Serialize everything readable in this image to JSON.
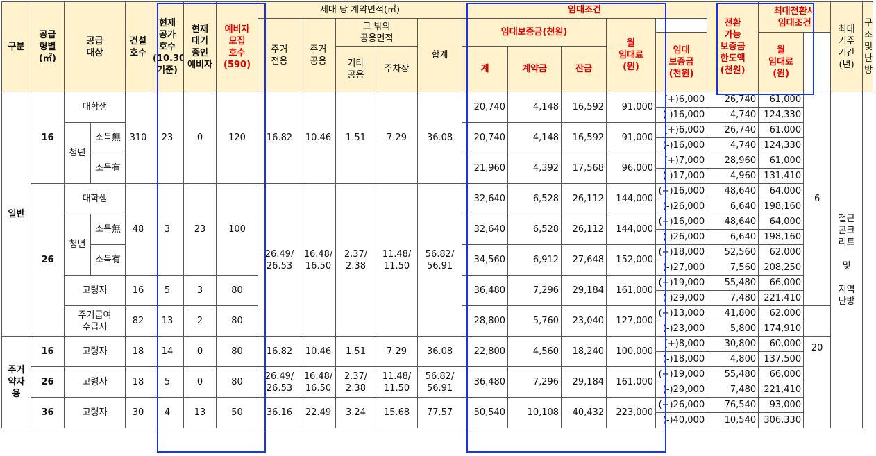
{
  "headers": {
    "category": "구분",
    "supply_type": "공급\n형별\n(㎡)",
    "target": "공급\n대상",
    "built": "건설\n호수",
    "vacant": "현재\n공가\n호수\n(10.30\n기준)",
    "waiting": "현재\n대기\n중인\n예비자",
    "recruit": "예비자\n모집\n호수\n(590)",
    "area_group": "세대 당 계약면적(㎡)",
    "area_private": "주거\n전용",
    "area_common": "주거\n공용",
    "area_other_group": "그 밖의\n공용면적",
    "area_other": "기타\n공용",
    "area_parking": "주차장",
    "area_total": "합계",
    "rent_group": "임대조건",
    "deposit_group": "임대보증금(천원)",
    "deposit_total": "계",
    "deposit_contract": "계약금",
    "deposit_balance": "잔금",
    "monthly": "월\n임대료\n(원)",
    "convertible": "전환\n가능\n보증금\n한도액\n(천원)",
    "max_group": "최대전환시\n임대조건",
    "max_deposit": "임대\n보증금\n(천원)",
    "max_monthly": "월\n임대료\n(원)",
    "max_period": "최대\n거주\n기간\n(년)",
    "structure": "구조\n및\n난방"
  },
  "labels": {
    "general": "일반",
    "housing_support": "주거\n약자\n용",
    "t16": "16",
    "t26": "26",
    "t36": "36",
    "student": "대학생",
    "youth": "청년",
    "no_income": "소득無",
    "has_income": "소득有",
    "elderly": "고령자",
    "benefit": "주거급여\n수급자",
    "period6": "6",
    "period20": "20",
    "structure": "철근\n콘크\n리트\n\n및\n\n지역\n난방"
  },
  "groups": {
    "g16": {
      "built": "310",
      "vacant": "23",
      "waiting": "0",
      "recruit": "120",
      "private": "16.82",
      "common": "10.46",
      "other": "1.51",
      "parking": "7.29",
      "total": "36.08"
    },
    "g26": {
      "built": "48",
      "vacant": "3",
      "waiting": "23",
      "recruit": "100"
    },
    "g26_area": {
      "private": "26.49/\n26.53",
      "common": "16.48/\n16.50",
      "other": "2.37/\n2.38",
      "parking": "11.48/\n11.50",
      "total": "56.82/\n56.91"
    },
    "g26_elderly": {
      "built": "16",
      "vacant": "5",
      "waiting": "3",
      "recruit": "80"
    },
    "g26_benefit": {
      "built": "82",
      "vacant": "13",
      "waiting": "2",
      "recruit": "80"
    },
    "s16": {
      "built": "18",
      "vacant": "14",
      "waiting": "0",
      "recruit": "80",
      "private": "16.82",
      "common": "10.46",
      "other": "1.51",
      "parking": "7.29",
      "total": "36.08"
    },
    "s26": {
      "built": "18",
      "vacant": "5",
      "waiting": "0",
      "recruit": "80",
      "private": "26.49/\n26.53",
      "common": "16.48/\n16.50",
      "other": "2.37/\n2.38",
      "parking": "11.48/\n11.50",
      "total": "56.82/\n56.91"
    },
    "s36": {
      "built": "30",
      "vacant": "4",
      "waiting": "13",
      "recruit": "50",
      "private": "36.16",
      "common": "22.49",
      "other": "3.24",
      "parking": "15.68",
      "total": "77.57"
    }
  },
  "rents": [
    {
      "deposit": "20,740",
      "contract": "4,148",
      "balance": "16,592",
      "monthly": "91,000",
      "conv": [
        "(+)6,000",
        "(-)16,000"
      ],
      "max_dep": [
        "26,740",
        "4,740"
      ],
      "max_mon": [
        "61,000",
        "124,330"
      ]
    },
    {
      "deposit": "20,740",
      "contract": "4,148",
      "balance": "16,592",
      "monthly": "91,000",
      "conv": [
        "(+)6,000",
        "(-)16,000"
      ],
      "max_dep": [
        "26,740",
        "4,740"
      ],
      "max_mon": [
        "61,000",
        "124,330"
      ]
    },
    {
      "deposit": "21,960",
      "contract": "4,392",
      "balance": "17,568",
      "monthly": "96,000",
      "conv": [
        "(+)7,000",
        "(-)17,000"
      ],
      "max_dep": [
        "28,960",
        "4,960"
      ],
      "max_mon": [
        "61,000",
        "131,410"
      ]
    },
    {
      "deposit": "32,640",
      "contract": "6,528",
      "balance": "26,112",
      "monthly": "144,000",
      "conv": [
        "(+)16,000",
        "(-)26,000"
      ],
      "max_dep": [
        "48,640",
        "6,640"
      ],
      "max_mon": [
        "64,000",
        "198,160"
      ]
    },
    {
      "deposit": "32,640",
      "contract": "6,528",
      "balance": "26,112",
      "monthly": "144,000",
      "conv": [
        "(+)16,000",
        "(-)26,000"
      ],
      "max_dep": [
        "48,640",
        "6,640"
      ],
      "max_mon": [
        "64,000",
        "198,160"
      ]
    },
    {
      "deposit": "34,560",
      "contract": "6,912",
      "balance": "27,648",
      "monthly": "152,000",
      "conv": [
        "(+)18,000",
        "(-)27,000"
      ],
      "max_dep": [
        "52,560",
        "7,560"
      ],
      "max_mon": [
        "62,000",
        "208,250"
      ]
    },
    {
      "deposit": "36,480",
      "contract": "7,296",
      "balance": "29,184",
      "monthly": "161,000",
      "conv": [
        "(+)19,000",
        "(-)29,000"
      ],
      "max_dep": [
        "55,480",
        "7,480"
      ],
      "max_mon": [
        "66,000",
        "221,410"
      ]
    },
    {
      "deposit": "28,800",
      "contract": "5,760",
      "balance": "23,040",
      "monthly": "127,000",
      "conv": [
        "(+)13,000",
        "(-)23,000"
      ],
      "max_dep": [
        "41,800",
        "5,800"
      ],
      "max_mon": [
        "62,000",
        "174,910"
      ]
    },
    {
      "deposit": "22,800",
      "contract": "4,560",
      "balance": "18,240",
      "monthly": "100,000",
      "conv": [
        "(+)8,000",
        "(-)18,000"
      ],
      "max_dep": [
        "30,800",
        "4,800"
      ],
      "max_mon": [
        "60,000",
        "137,500"
      ]
    },
    {
      "deposit": "36,480",
      "contract": "7,296",
      "balance": "29,184",
      "monthly": "161,000",
      "conv": [
        "(+)19,000",
        "(-)29,000"
      ],
      "max_dep": [
        "55,480",
        "7,480"
      ],
      "max_mon": [
        "66,000",
        "221,410"
      ]
    },
    {
      "deposit": "50,540",
      "contract": "10,108",
      "balance": "40,432",
      "monthly": "223,000",
      "conv": [
        "(+)26,000",
        "(-)40,000"
      ],
      "max_dep": [
        "76,540",
        "10,540"
      ],
      "max_mon": [
        "93,000",
        "306,330"
      ]
    }
  ]
}
